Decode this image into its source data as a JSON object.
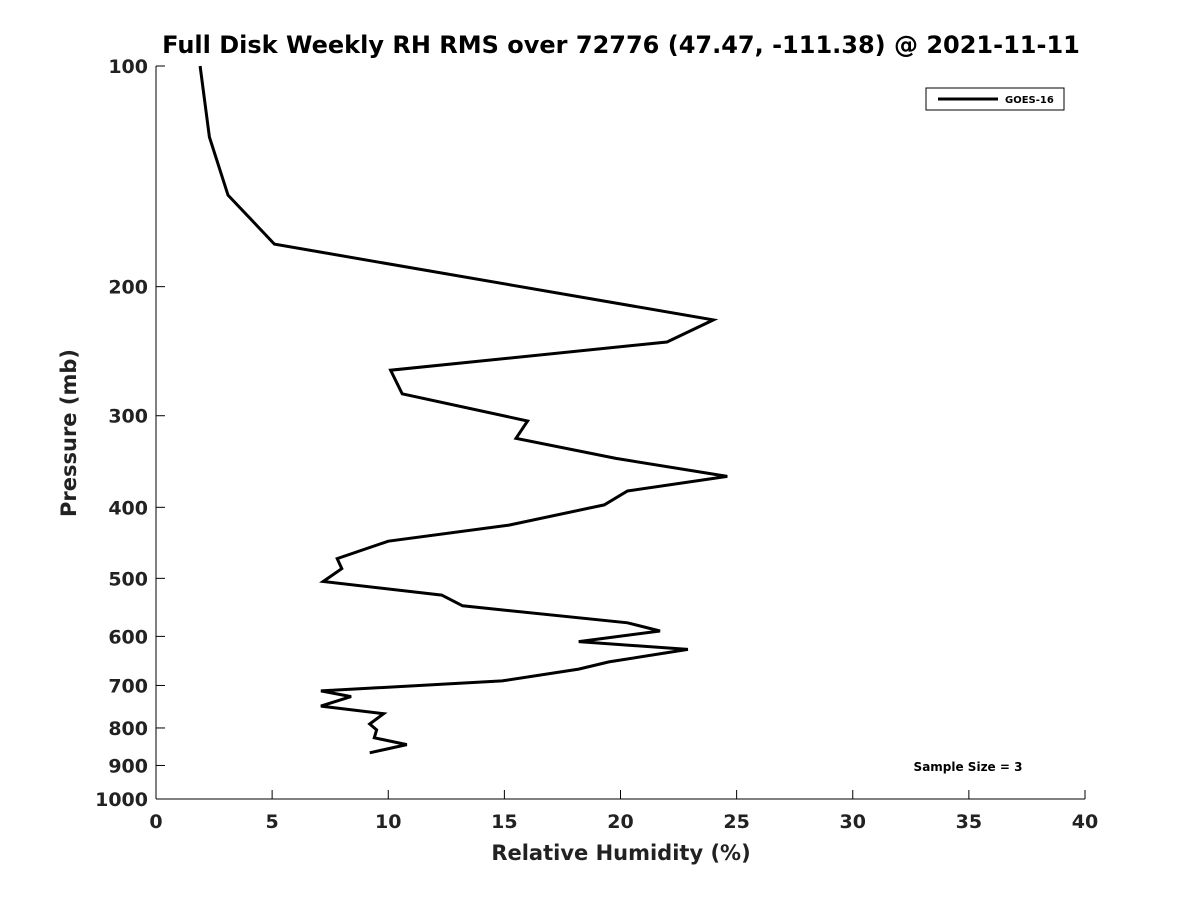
{
  "chart_data": {
    "type": "line",
    "title": "Full Disk Weekly RH RMS over 72776 (47.47, -111.38) @ 2021-11-11",
    "xlabel": "Relative Humidity (%)",
    "ylabel": "Pressure (mb)",
    "xlim": [
      0,
      40
    ],
    "ylim": [
      100,
      1000
    ],
    "y_scale": "log",
    "y_reversed": true,
    "x_ticks": [
      "0",
      "5",
      "10",
      "15",
      "20",
      "25",
      "30",
      "35",
      "40"
    ],
    "y_ticks": [
      "100",
      "200",
      "300",
      "400",
      "500",
      "600",
      "700",
      "800",
      "900",
      "1000"
    ],
    "grid": false,
    "legend_position": "top-right",
    "annotation": "Sample Size = 3",
    "series": [
      {
        "name": "GOES-16",
        "color": "#000000",
        "x": [
          1.9,
          2.3,
          3.1,
          5.1,
          9.5,
          24.0,
          22.0,
          10.1,
          10.6,
          16.0,
          15.5,
          19.8,
          24.6,
          20.3,
          19.3,
          15.2,
          10.0,
          7.8,
          8.0,
          7.2,
          12.3,
          13.2,
          20.3,
          21.7,
          18.2,
          22.9,
          19.5,
          18.2,
          14.9,
          7.1,
          8.4,
          7.1,
          9.8,
          9.2,
          9.5,
          9.4,
          10.8,
          9.2
        ],
        "y": [
          100,
          125,
          150,
          175,
          185,
          222,
          238,
          260,
          280,
          305,
          322,
          343,
          363,
          380,
          397,
          423,
          445,
          470,
          485,
          505,
          527,
          545,
          575,
          590,
          610,
          625,
          650,
          665,
          690,
          712,
          725,
          747,
          765,
          790,
          805,
          825,
          843,
          865
        ]
      }
    ]
  }
}
